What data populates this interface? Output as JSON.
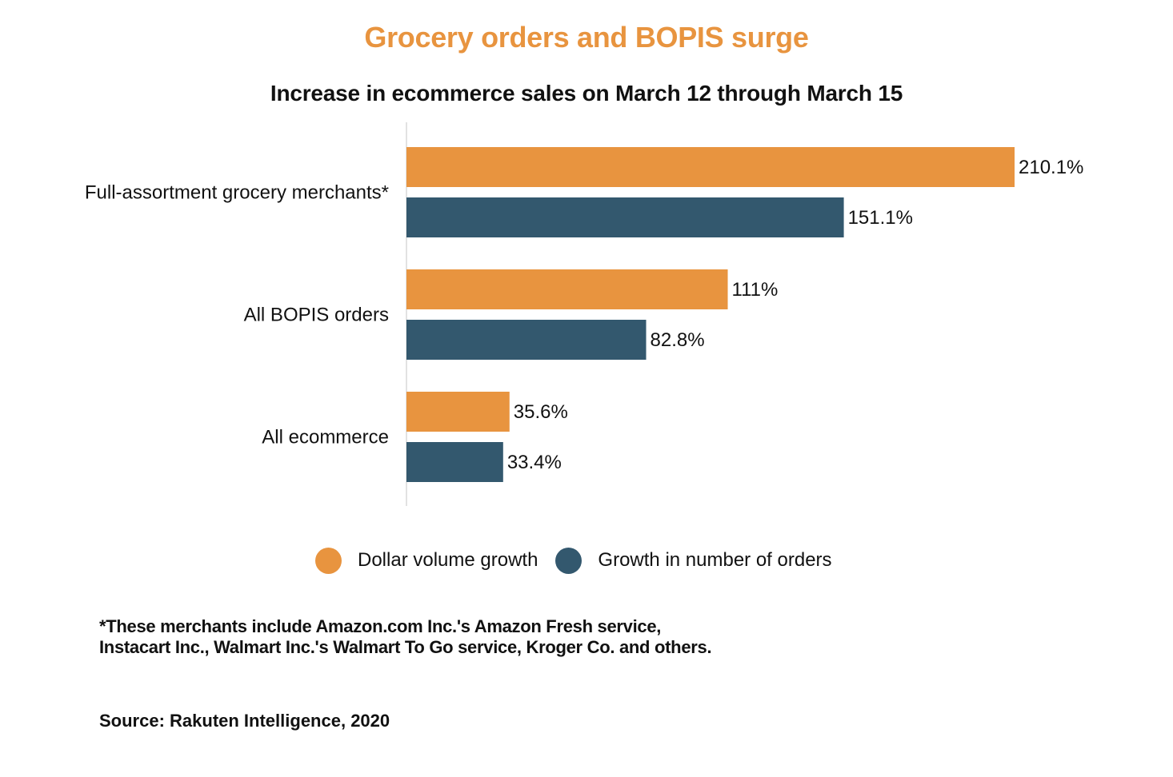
{
  "chart_data": {
    "type": "bar",
    "orientation": "horizontal",
    "title": "Grocery orders and BOPIS surge",
    "subtitle": "Increase in ecommerce sales on March 12 through March 15",
    "categories": [
      "Full-assortment grocery merchants*",
      "All BOPIS orders",
      "All ecommerce"
    ],
    "series": [
      {
        "name": "Dollar volume growth",
        "color": "#e8943f",
        "values": [
          210.1,
          111,
          35.6
        ],
        "labels": [
          "210.1%",
          "111%",
          "35.6%"
        ]
      },
      {
        "name": "Growth in number of orders",
        "color": "#33586e",
        "values": [
          151.1,
          82.8,
          33.4
        ],
        "labels": [
          "151.1%",
          "82.8%",
          "33.4%"
        ]
      }
    ],
    "xlim": [
      0,
      210.1
    ],
    "grid": false,
    "legend_position": "bottom"
  },
  "footnote": "*These merchants include Amazon.com Inc.'s Amazon Fresh service, Instacart Inc., Walmart Inc.'s Walmart To Go service, Kroger Co. and others.",
  "source": "Source: Rakuten Intelligence, 2020"
}
